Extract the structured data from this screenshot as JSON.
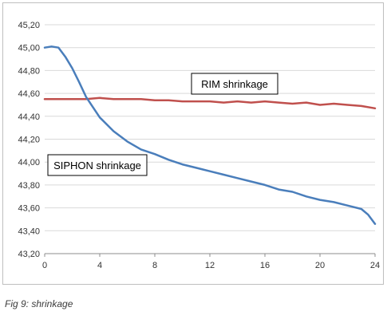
{
  "caption": "Fig 9: shrinkage",
  "chart_data": {
    "type": "line",
    "title": "",
    "xlabel": "",
    "ylabel": "",
    "xlim": [
      0,
      24
    ],
    "ylim": [
      43.2,
      45.2
    ],
    "x_ticks": [
      "0",
      "4",
      "8",
      "12",
      "16",
      "20",
      "24"
    ],
    "x_tick_values": [
      0,
      4,
      8,
      12,
      16,
      20,
      24
    ],
    "y_ticks": [
      "43,20",
      "43,40",
      "43,60",
      "43,80",
      "44,00",
      "44,20",
      "44,40",
      "44,60",
      "44,80",
      "45,00",
      "45,20"
    ],
    "y_tick_values": [
      43.2,
      43.4,
      43.6,
      43.8,
      44.0,
      44.2,
      44.4,
      44.6,
      44.8,
      45.0,
      45.2
    ],
    "grid": "horizontal",
    "annotations": [
      {
        "text": "RIM shrinkage",
        "series": "RIM"
      },
      {
        "text": "SIPHON shrinkage",
        "series": "SIPHON"
      }
    ],
    "series": [
      {
        "name": "RIM shrinkage",
        "color": "#c0504d",
        "x": [
          0,
          1,
          2,
          3,
          4,
          5,
          6,
          7,
          8,
          9,
          10,
          11,
          12,
          13,
          14,
          15,
          16,
          17,
          18,
          19,
          20,
          21,
          22,
          23,
          24
        ],
        "y": [
          44.55,
          44.55,
          44.55,
          44.55,
          44.56,
          44.55,
          44.55,
          44.55,
          44.54,
          44.54,
          44.53,
          44.53,
          44.53,
          44.52,
          44.53,
          44.52,
          44.53,
          44.52,
          44.51,
          44.52,
          44.5,
          44.51,
          44.5,
          44.49,
          44.47
        ]
      },
      {
        "name": "SIPHON shrinkage",
        "color": "#4a7ebb",
        "x": [
          0,
          0.5,
          1,
          1.5,
          2,
          2.5,
          3,
          3.5,
          4,
          5,
          6,
          7,
          8,
          9,
          10,
          11,
          12,
          13,
          14,
          15,
          16,
          17,
          18,
          19,
          20,
          21,
          22,
          23,
          23.5,
          24
        ],
        "y": [
          45.0,
          45.01,
          45.0,
          44.92,
          44.82,
          44.7,
          44.57,
          44.48,
          44.39,
          44.27,
          44.18,
          44.11,
          44.07,
          44.02,
          43.98,
          43.95,
          43.92,
          43.89,
          43.86,
          43.83,
          43.8,
          43.76,
          43.74,
          43.7,
          43.67,
          43.65,
          43.62,
          43.59,
          43.54,
          43.46
        ]
      }
    ]
  }
}
